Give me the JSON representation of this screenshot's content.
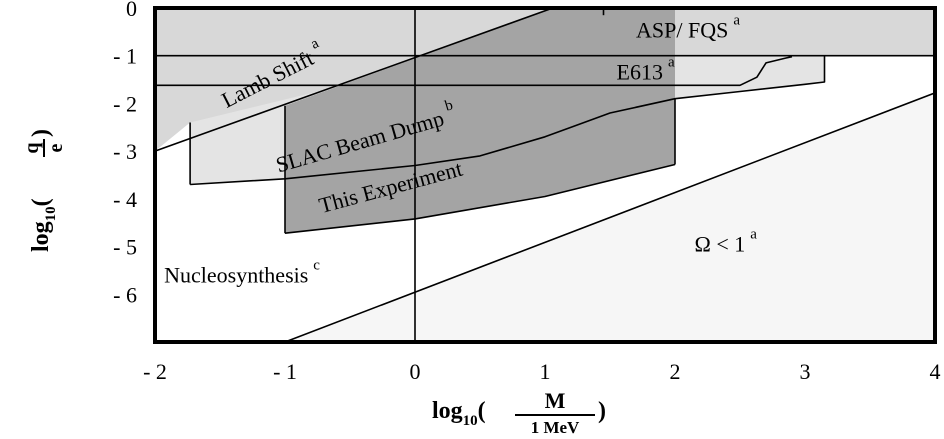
{
  "chart_data": {
    "type": "area",
    "xlabel": {
      "prefix": "log",
      "sub": "10",
      "num": "M",
      "den": "1 MeV"
    },
    "ylabel": {
      "prefix": "log",
      "sub": "10",
      "num": "q",
      "den": "e"
    },
    "xlim": [
      -2,
      4
    ],
    "ylim": [
      -7,
      0
    ],
    "xticks": [
      {
        "value": -2,
        "label": "- 2"
      },
      {
        "value": -1,
        "label": "- 1"
      },
      {
        "value": 0,
        "label": "0"
      },
      {
        "value": 1,
        "label": "1"
      },
      {
        "value": 2,
        "label": "2"
      },
      {
        "value": 3,
        "label": "3"
      },
      {
        "value": 4,
        "label": "4"
      }
    ],
    "yticks": [
      {
        "value": 0,
        "label": "0"
      },
      {
        "value": -1,
        "label": "- 1"
      },
      {
        "value": -2,
        "label": "- 2"
      },
      {
        "value": -3,
        "label": "- 3"
      },
      {
        "value": -4,
        "label": "- 4"
      },
      {
        "value": -5,
        "label": "- 5"
      },
      {
        "value": -6,
        "label": "- 6"
      }
    ],
    "regions": [
      {
        "id": "slac-beam-dump",
        "fill": "#e4e4e4",
        "outline": [
          [
            -1.73,
            -3.7
          ],
          [
            -1.0,
            -3.58
          ],
          [
            0.0,
            -3.3
          ],
          [
            0.5,
            -3.1
          ],
          [
            1.0,
            -2.7
          ],
          [
            1.5,
            -2.2
          ],
          [
            2.0,
            -1.9
          ],
          [
            2.5,
            -1.75
          ],
          [
            3.0,
            -1.6
          ],
          [
            3.15,
            -1.55
          ],
          [
            3.15,
            -1.0
          ],
          [
            -1.73,
            -1.0
          ]
        ]
      },
      {
        "id": "asp-fqs",
        "fill": "#d8d8d8",
        "outline": [
          [
            -2.0,
            -1.0
          ],
          [
            4.0,
            -1.0
          ],
          [
            4.0,
            0.0
          ],
          [
            -2.0,
            0.0
          ]
        ]
      },
      {
        "id": "lamb-shift",
        "fill": "#d8d8d8",
        "outline": [
          [
            -2.0,
            -3.0
          ],
          [
            -2.0,
            0.0
          ],
          [
            1.06,
            0.0
          ],
          [
            -0.55,
            -1.62
          ],
          [
            -1.73,
            -2.4
          ]
        ]
      },
      {
        "id": "this-experiment",
        "fill": "#a4a4a4",
        "outline": [
          [
            -1.0,
            -4.72
          ],
          [
            0.0,
            -4.42
          ],
          [
            1.0,
            -3.95
          ],
          [
            2.0,
            -3.28
          ],
          [
            2.0,
            0.0
          ],
          [
            1.06,
            0.0
          ],
          [
            -1.0,
            -2.05
          ]
        ]
      },
      {
        "id": "omega",
        "fill": "#f6f6f6",
        "outline": [
          [
            -1.0,
            -7.0
          ],
          [
            4.0,
            -1.78
          ],
          [
            4.0,
            -7.0
          ]
        ]
      }
    ],
    "lines": [
      {
        "id": "nucleosynthesis-vertical",
        "points": [
          [
            0,
            -7
          ],
          [
            0,
            0
          ]
        ]
      },
      {
        "id": "asp-bottom-line",
        "points": [
          [
            -2,
            -1
          ],
          [
            4,
            -1
          ]
        ]
      },
      {
        "id": "lamb-shift-line",
        "points": [
          [
            -2,
            -3
          ],
          [
            1.06,
            0
          ]
        ]
      },
      {
        "id": "e613-bottom-line",
        "points": [
          [
            -2,
            -1.62
          ],
          [
            2.5,
            -1.62
          ],
          [
            2.63,
            -1.45
          ],
          [
            2.7,
            -1.15
          ],
          [
            2.85,
            -1.05
          ],
          [
            2.9,
            -1.02
          ]
        ]
      },
      {
        "id": "slac-curve",
        "points": [
          [
            -1.73,
            -3.7
          ],
          [
            -1.0,
            -3.58
          ],
          [
            0.0,
            -3.3
          ],
          [
            0.5,
            -3.1
          ],
          [
            1.0,
            -2.7
          ],
          [
            1.5,
            -2.2
          ],
          [
            2.0,
            -1.9
          ],
          [
            2.5,
            -1.75
          ],
          [
            3.0,
            -1.6
          ],
          [
            3.15,
            -1.55
          ],
          [
            3.15,
            -1.0
          ]
        ]
      },
      {
        "id": "slac-left-edge",
        "points": [
          [
            -1.73,
            -3.7
          ],
          [
            -1.73,
            -2.4
          ]
        ]
      },
      {
        "id": "this-experiment-bottom",
        "points": [
          [
            -1.0,
            -4.72
          ],
          [
            0.0,
            -4.42
          ],
          [
            1.0,
            -3.95
          ],
          [
            2.0,
            -3.28
          ]
        ]
      },
      {
        "id": "this-experiment-left",
        "points": [
          [
            -1.0,
            -4.72
          ],
          [
            -1.0,
            -2.05
          ]
        ]
      },
      {
        "id": "this-experiment-right",
        "points": [
          [
            2.0,
            -3.28
          ],
          [
            2.0,
            -1.9
          ]
        ]
      },
      {
        "id": "asp-left-edge",
        "points": [
          [
            1.45,
            0
          ],
          [
            1.45,
            -0.15
          ]
        ]
      },
      {
        "id": "omega-line",
        "points": [
          [
            -1.0,
            -7.0
          ],
          [
            4.0,
            -1.78
          ]
        ]
      }
    ],
    "annotations": [
      {
        "id": "lamb-shift",
        "text": "Lamb Shift",
        "sup": "a",
        "x": -1.45,
        "y": -2.1,
        "angle": -27
      },
      {
        "id": "asp-fqs",
        "text": "ASP/ FQS",
        "sup": "a",
        "x": 1.7,
        "y": -0.62,
        "angle": 0
      },
      {
        "id": "e613",
        "text": "E613",
        "sup": "a",
        "x": 1.55,
        "y": -1.5,
        "angle": 0
      },
      {
        "id": "slac-beam-dump",
        "text": "SLAC Beam Dump",
        "sup": "b",
        "x": -1.05,
        "y": -3.45,
        "angle": -16
      },
      {
        "id": "this-experiment",
        "text": "This Experiment",
        "sup": "",
        "x": -0.72,
        "y": -4.3,
        "angle": -15
      },
      {
        "id": "nucleosynthesis",
        "text": "Nucleosynthesis",
        "sup": "c",
        "x": -1.93,
        "y": -5.75,
        "angle": 0
      },
      {
        "id": "omega",
        "text": "Ω < 1",
        "sup": "a",
        "x": 2.15,
        "y": -5.1,
        "angle": 0
      }
    ]
  }
}
